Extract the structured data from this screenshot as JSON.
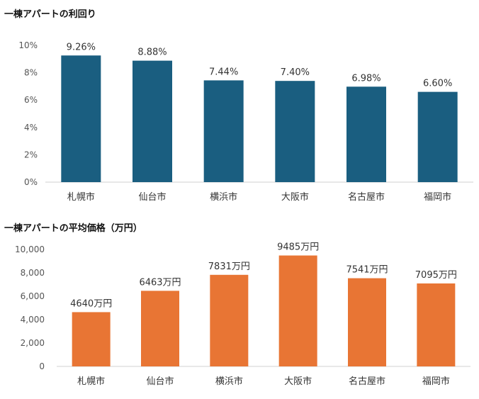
{
  "chart_data": [
    {
      "type": "bar",
      "title": "一棟アパートの利回り",
      "categories": [
        "札幌市",
        "仙台市",
        "横浜市",
        "大阪市",
        "名古屋市",
        "福岡市"
      ],
      "values": [
        9.26,
        8.88,
        7.44,
        7.4,
        6.98,
        6.6
      ],
      "value_labels": [
        "9.26%",
        "8.88%",
        "7.44%",
        "7.40%",
        "6.98%",
        "6.60%"
      ],
      "ylim": [
        0,
        10
      ],
      "yticks": [
        0,
        2,
        4,
        6,
        8,
        10
      ],
      "ytick_labels": [
        "0%",
        "2%",
        "4%",
        "6%",
        "8%",
        "10%"
      ],
      "xlabel": "",
      "ylabel": "",
      "color": "#1a5e80",
      "grid": false,
      "legend": false
    },
    {
      "type": "bar",
      "title": "一棟アパートの平均価格（万円）",
      "categories": [
        "札幌市",
        "仙台市",
        "横浜市",
        "大阪市",
        "名古屋市",
        "福岡市"
      ],
      "values": [
        4640,
        6463,
        7831,
        9485,
        7541,
        7095
      ],
      "value_labels": [
        "4640万円",
        "6463万円",
        "7831万円",
        "9485万円",
        "7541万円",
        "7095万円"
      ],
      "ylim": [
        0,
        10000
      ],
      "yticks": [
        0,
        2000,
        4000,
        6000,
        8000,
        10000
      ],
      "ytick_labels": [
        "0",
        "2,000",
        "4,000",
        "6,000",
        "8,000",
        "10,000"
      ],
      "xlabel": "",
      "ylabel": "",
      "color": "#e87534",
      "grid": false,
      "legend": false
    }
  ]
}
